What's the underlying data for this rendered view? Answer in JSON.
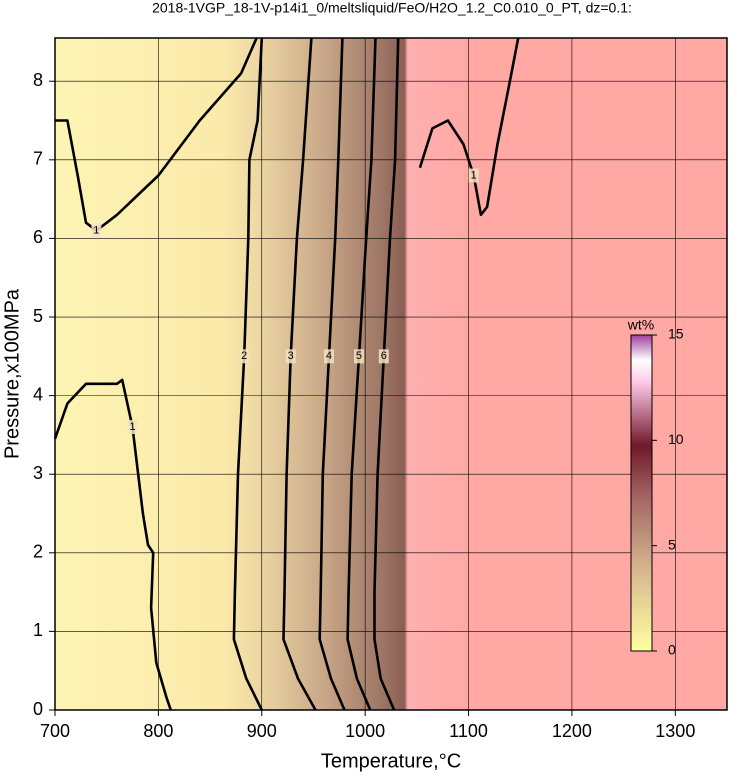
{
  "chart_data": {
    "type": "contour",
    "title": "2018-1VGP_18-1V-p14i1_0/meltsliquid/FeO/H2O_1.2_C0.010_0_PT, dz=0.1:",
    "x_label": "Temperature,°C",
    "y_label": "Pressure,x100MPa",
    "xlim": [
      700,
      1350
    ],
    "ylim": [
      0,
      8.55
    ],
    "xticks": [
      700,
      800,
      900,
      1000,
      1100,
      1200,
      1300
    ],
    "yticks": [
      0,
      1,
      2,
      3,
      4,
      5,
      6,
      7,
      8
    ],
    "grid": true,
    "contours": [
      {
        "level": 1,
        "x": [
          700,
          712,
          722,
          730,
          740,
          760,
          800,
          840,
          880,
          895
        ],
        "y": [
          7.5,
          7.5,
          6.8,
          6.2,
          6.1,
          6.3,
          6.8,
          7.5,
          8.1,
          8.55
        ]
      },
      {
        "level": 1,
        "x": [
          700,
          712,
          730,
          760,
          765,
          775,
          785,
          790,
          795,
          793,
          798,
          808,
          812
        ],
        "y": [
          3.45,
          3.9,
          4.15,
          4.15,
          4.2,
          3.6,
          2.5,
          2.1,
          2.0,
          1.3,
          0.6,
          0.15,
          0.0
        ]
      },
      {
        "level": 1,
        "x": [
          1053,
          1065,
          1080,
          1095,
          1105,
          1112,
          1118,
          1128,
          1140,
          1148
        ],
        "y": [
          6.9,
          7.4,
          7.5,
          7.2,
          6.8,
          6.3,
          6.4,
          7.2,
          8.0,
          8.55
        ]
      },
      {
        "level": 2,
        "x": [
          900,
          896,
          888,
          887,
          883,
          877,
          874,
          873,
          885,
          900
        ],
        "y": [
          8.55,
          7.5,
          7.0,
          6.0,
          4.5,
          3.0,
          1.5,
          0.9,
          0.4,
          0.0
        ]
      },
      {
        "level": 3,
        "x": [
          948,
          940,
          934,
          928,
          924,
          922,
          921,
          935,
          952
        ],
        "y": [
          8.55,
          7.0,
          6.0,
          4.5,
          3.0,
          1.5,
          0.9,
          0.4,
          0.0
        ]
      },
      {
        "level": 4,
        "x": [
          978,
          974,
          971,
          965,
          959,
          957,
          956,
          967,
          980
        ],
        "y": [
          8.55,
          7.0,
          6.0,
          4.5,
          3.0,
          1.5,
          0.9,
          0.4,
          0.0
        ]
      },
      {
        "level": 5,
        "x": [
          1010,
          1006,
          1001,
          994,
          987,
          984,
          983,
          992,
          1005
        ],
        "y": [
          8.55,
          7.0,
          6.0,
          4.5,
          3.0,
          1.5,
          0.9,
          0.4,
          0.0
        ]
      },
      {
        "level": 6,
        "x": [
          1032,
          1029,
          1024,
          1018,
          1012,
          1009,
          1009,
          1015,
          1028
        ],
        "y": [
          8.55,
          7.0,
          6.0,
          4.5,
          3.0,
          1.5,
          0.9,
          0.4,
          0.0
        ]
      }
    ],
    "colorbar": {
      "label": "wt%",
      "lim": [
        0,
        15
      ],
      "ticks": [
        0,
        5,
        10,
        15
      ]
    }
  }
}
